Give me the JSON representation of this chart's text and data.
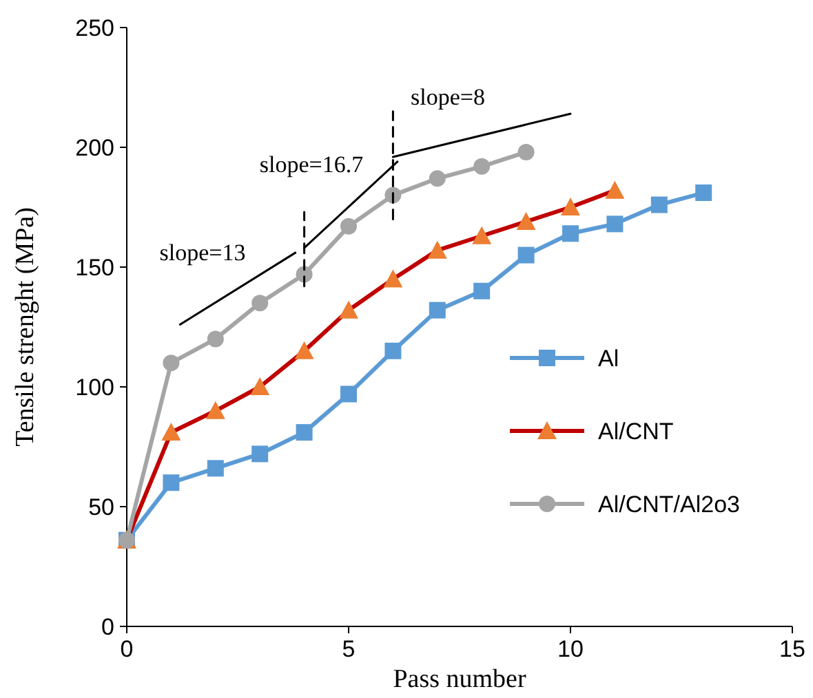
{
  "chart_data": {
    "type": "line",
    "xlabel": "Pass number",
    "ylabel": "Tensile strenght (MPa)",
    "xlim": [
      0,
      15
    ],
    "xticks": [
      0,
      5,
      10,
      15
    ],
    "ylim": [
      0,
      250
    ],
    "yticks": [
      0,
      50,
      100,
      150,
      200,
      250
    ],
    "grid": false,
    "legend": "right",
    "series": [
      {
        "name": "Al",
        "color": "#5b9bd5",
        "marker": "square",
        "x": [
          0,
          1,
          2,
          3,
          4,
          5,
          6,
          7,
          8,
          9,
          10,
          11,
          12,
          13
        ],
        "values": [
          36,
          60,
          66,
          72,
          81,
          97,
          115,
          132,
          140,
          155,
          164,
          168,
          176,
          181
        ]
      },
      {
        "name": "Al/CNT",
        "color": "#c00000",
        "colors": [
          "#ed7d31",
          "#ed7d31",
          "#ed7d31",
          "#ed7d31",
          "#ed7d31",
          "#ed7d31",
          "#ed7d31",
          "#ed7d31",
          "#ed7d31",
          "#ed7d31",
          "#ed7d31",
          "#ed7d31"
        ],
        "marker": "triangle",
        "x": [
          0,
          1,
          2,
          3,
          4,
          5,
          6,
          7,
          8,
          9,
          10,
          11
        ],
        "values": [
          36,
          81,
          90,
          100,
          115,
          132,
          145,
          157,
          163,
          169,
          175,
          182
        ]
      },
      {
        "name": "Al/CNT/Al2o3",
        "color": "#a5a5a5",
        "marker": "circle",
        "x": [
          0,
          1,
          2,
          3,
          4,
          5,
          6,
          7,
          8,
          9
        ],
        "values": [
          36,
          110,
          120,
          135,
          147,
          167,
          180,
          187,
          192,
          198
        ]
      },
      {
        "type": "line",
        "color": "#000000",
        "marker": "none",
        "x": [
          1.2,
          3.8
        ],
        "values": [
          126,
          156
        ]
      },
      {
        "type": "line",
        "color": "#000000",
        "marker": "none",
        "x": [
          4,
          6.1
        ],
        "values": [
          158,
          194
        ]
      },
      {
        "type": "line",
        "color": "#000000",
        "marker": "none",
        "x": [
          6,
          10
        ],
        "values": [
          196,
          214
        ]
      },
      {
        "type": "line",
        "color": "#000000",
        "marker": "none",
        "line_style": "dashed",
        "x": [
          4,
          4
        ],
        "values": [
          142,
          173
        ]
      },
      {
        "type": "line",
        "color": "#000000",
        "marker": "none",
        "line_style": "dashed",
        "x": [
          6,
          6
        ],
        "values": [
          170,
          215
        ]
      }
    ],
    "annotations": [
      "slope=13",
      "slope=16.7",
      "slope=8"
    ]
  }
}
